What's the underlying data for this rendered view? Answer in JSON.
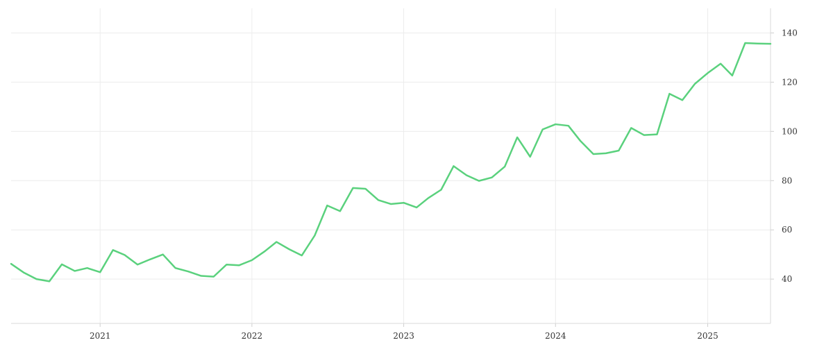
{
  "chart_data": {
    "type": "line",
    "title": "",
    "xlabel": "",
    "ylabel": "",
    "grid": true,
    "y_axis_side": "right",
    "xlim": [
      "2020-06-01",
      "2025-06-01"
    ],
    "ylim": [
      22,
      150
    ],
    "x_ticks": [
      "2021",
      "2022",
      "2023",
      "2024",
      "2025"
    ],
    "y_ticks": [
      40,
      60,
      80,
      100,
      120,
      140
    ],
    "line_color": "#5ad17d",
    "series": [
      {
        "x": [
          "2020-06",
          "2020-07",
          "2020-08",
          "2020-09",
          "2020-10",
          "2020-11",
          "2020-12",
          "2021-01",
          "2021-02",
          "2021-03",
          "2021-04",
          "2021-05",
          "2021-06",
          "2021-07",
          "2021-08",
          "2021-09",
          "2021-10",
          "2021-11",
          "2021-12",
          "2022-01",
          "2022-02",
          "2022-03",
          "2022-04",
          "2022-05",
          "2022-06",
          "2022-07",
          "2022-08",
          "2022-09",
          "2022-10",
          "2022-11",
          "2022-12",
          "2023-01",
          "2023-02",
          "2023-03",
          "2023-04",
          "2023-05",
          "2023-06",
          "2023-07",
          "2023-08",
          "2023-09",
          "2023-10",
          "2023-11",
          "2023-12",
          "2024-01",
          "2024-02",
          "2024-03",
          "2024-04",
          "2024-05",
          "2024-06",
          "2024-07",
          "2024-08",
          "2024-09",
          "2024-10",
          "2024-11",
          "2024-12",
          "2025-01",
          "2025-02",
          "2025-03",
          "2025-04",
          "2025-05",
          "2025-06"
        ],
        "values": [
          46.2,
          42.7,
          40.0,
          39.1,
          46.0,
          43.3,
          44.5,
          42.8,
          51.8,
          49.8,
          45.9,
          48.0,
          50.0,
          44.5,
          43.1,
          41.3,
          41.0,
          45.9,
          45.6,
          47.7,
          51.3,
          55.1,
          52.1,
          49.6,
          57.7,
          69.9,
          67.6,
          77.0,
          76.7,
          72.1,
          70.5,
          71.0,
          69.1,
          72.9,
          76.3,
          85.9,
          82.2,
          79.9,
          81.3,
          85.7,
          97.6,
          89.7,
          100.8,
          102.9,
          102.3,
          96.1,
          90.8,
          91.1,
          92.2,
          101.4,
          98.5,
          98.8,
          115.3,
          112.7,
          119.3,
          123.7,
          127.5,
          122.7,
          135.9,
          135.7,
          135.6
        ]
      }
    ]
  }
}
